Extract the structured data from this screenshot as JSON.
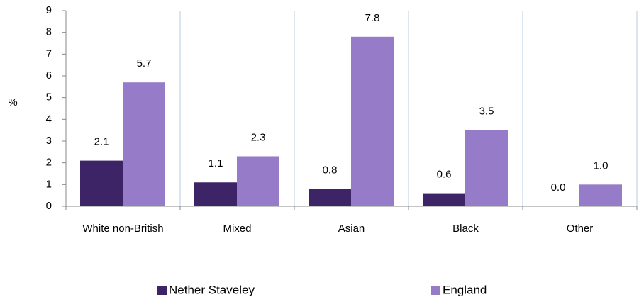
{
  "chart_data": {
    "type": "bar",
    "y_label": "%",
    "categories": [
      "White non-British",
      "Mixed",
      "Asian",
      "Black",
      "Other"
    ],
    "series": [
      {
        "name": "Nether Staveley",
        "color": "#3d2466",
        "values": [
          2.1,
          1.1,
          0.8,
          0.6,
          0
        ],
        "value_labels": [
          "2.1",
          "1.1",
          "0.8",
          "0.6",
          "0.0"
        ]
      },
      {
        "name": "England",
        "color": "#967bc8",
        "values": [
          5.7,
          2.3,
          7.8,
          3.5,
          1
        ],
        "value_labels": [
          "5.7",
          "2.3",
          "7.8",
          "3.5",
          "1.0"
        ]
      }
    ],
    "ylim": [
      0,
      9
    ],
    "yticks": [
      0,
      1,
      2,
      3,
      4,
      5,
      6,
      7,
      8,
      9
    ],
    "legend": "bottom"
  }
}
